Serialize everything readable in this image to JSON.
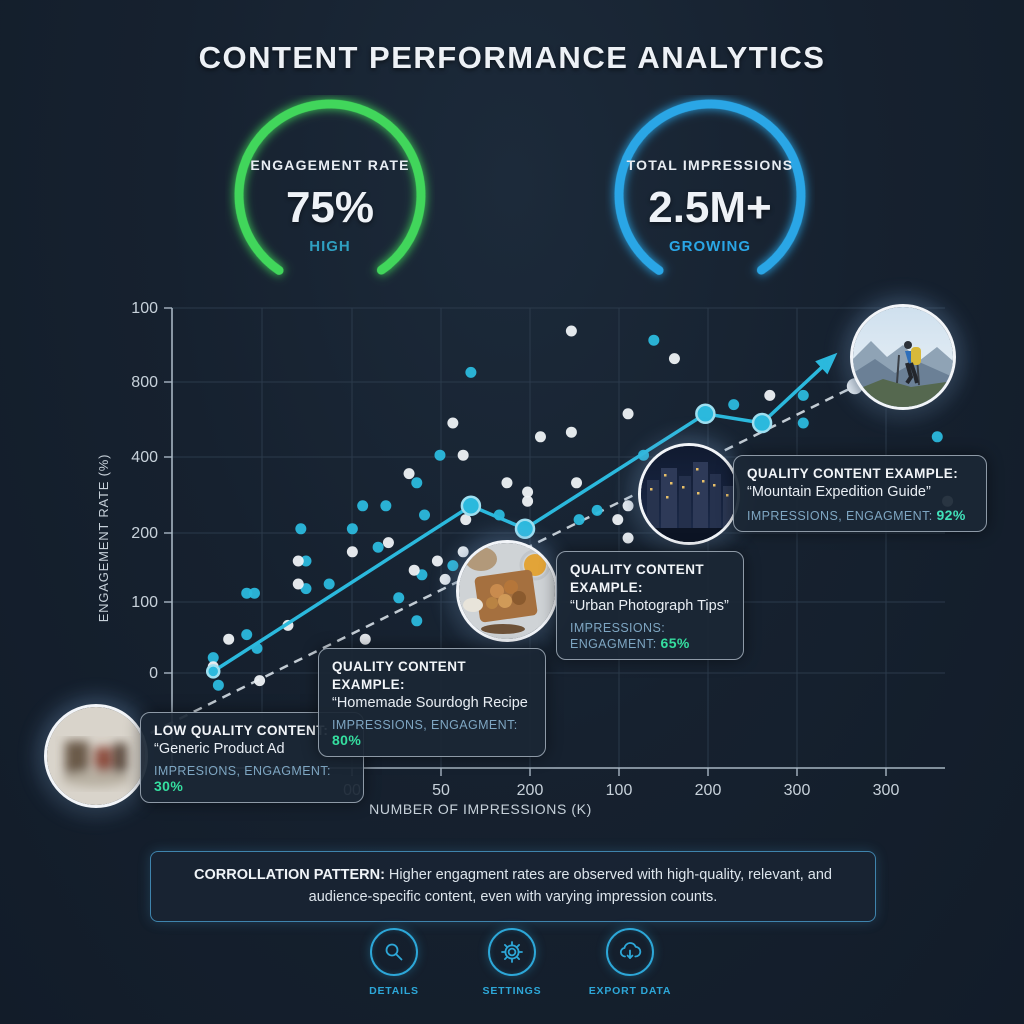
{
  "title": "CONTENT PERFORMANCE ANALYTICS",
  "gauges": [
    {
      "label": "ENGAGEMENT RATE",
      "value": "75%",
      "status": "HIGH",
      "arc_color": "#41d65b",
      "status_color": "#2f9fc0"
    },
    {
      "label": "TOTAL IMPRESSIONS",
      "value": "2.5M+",
      "status": "GROWING",
      "arc_color": "#2aa6e6",
      "status_color": "#2aa6e6"
    }
  ],
  "chart_data": {
    "type": "scatter",
    "title": "",
    "xlabel": "NUMBER OF IMPRESSIONS (K)",
    "ylabel": "ENGAGEMENT RATE (%)",
    "xlim": [
      0,
      300
    ],
    "ylim": [
      0,
      100
    ],
    "grid": true,
    "x_tick_labels": [
      "00",
      "50",
      "200",
      "100",
      "200",
      "300",
      "300"
    ],
    "y_tick_labels": [
      "100",
      "800",
      "400",
      "200",
      "100",
      "0"
    ],
    "series": [
      {
        "name": "cyan-points",
        "color": "#2bb9dd",
        "points": [
          [
            16,
            24
          ],
          [
            18,
            18
          ],
          [
            29,
            29
          ],
          [
            29,
            38
          ],
          [
            32,
            38
          ],
          [
            33,
            26
          ],
          [
            50,
            52
          ],
          [
            52,
            45
          ],
          [
            52,
            39
          ],
          [
            61,
            40
          ],
          [
            70,
            52
          ],
          [
            74,
            57
          ],
          [
            80,
            48
          ],
          [
            83,
            57
          ],
          [
            88,
            37
          ],
          [
            95,
            62
          ],
          [
            95,
            32
          ],
          [
            97,
            42
          ],
          [
            98,
            55
          ],
          [
            104,
            68
          ],
          [
            109,
            44
          ],
          [
            116,
            86
          ],
          [
            127,
            55
          ],
          [
            158,
            54
          ],
          [
            161,
            31
          ],
          [
            165,
            56
          ],
          [
            183,
            68
          ],
          [
            187,
            93
          ],
          [
            218,
            79
          ],
          [
            245,
            81
          ],
          [
            245,
            75
          ],
          [
            297,
            72
          ]
        ]
      },
      {
        "name": "white-points",
        "color": "#eef2f6",
        "points": [
          [
            16,
            22
          ],
          [
            22,
            28
          ],
          [
            34,
            19
          ],
          [
            45,
            31
          ],
          [
            49,
            45
          ],
          [
            49,
            40
          ],
          [
            70,
            47
          ],
          [
            75,
            28
          ],
          [
            84,
            49
          ],
          [
            92,
            64
          ],
          [
            94,
            43
          ],
          [
            103,
            45
          ],
          [
            106,
            41
          ],
          [
            109,
            75
          ],
          [
            113,
            68
          ],
          [
            113,
            47
          ],
          [
            114,
            54
          ],
          [
            130,
            62
          ],
          [
            138,
            60
          ],
          [
            138,
            58
          ],
          [
            143,
            72
          ],
          [
            155,
            95
          ],
          [
            155,
            73
          ],
          [
            157,
            62
          ],
          [
            173,
            54
          ],
          [
            177,
            50
          ],
          [
            177,
            57
          ],
          [
            177,
            77
          ],
          [
            195,
            89
          ],
          [
            232,
            81
          ],
          [
            301,
            58
          ]
        ]
      }
    ],
    "trend_line": {
      "name": "quality-trend",
      "color": "#2bb9dd",
      "points": [
        [
          16,
          21
        ],
        [
          116,
          57
        ],
        [
          137,
          52
        ],
        [
          207,
          77
        ],
        [
          229,
          75
        ],
        [
          252,
          87
        ]
      ],
      "arrow_end": true
    },
    "dashed_trend": {
      "name": "baseline-trend",
      "color": "#c3ccd4",
      "points": [
        [
          -25,
          3
        ],
        [
          265,
          83
        ]
      ],
      "end_dot": true
    },
    "axis_color": "#a7b5c2",
    "grid_color": "#2b3a4b",
    "tick_label_color": "#c7d1da"
  },
  "callouts": [
    {
      "title": "LOW QUALITY CONTENT:",
      "subtitle": "“Generic Product Ad",
      "metrics_label": "IMPRESIONS, ENGAGMENT:",
      "metrics_value": "30%",
      "value_color": "#35dfa0",
      "image": "blurred-product-photo"
    },
    {
      "title": "QUALITY CONTENT EXAMPLE:",
      "subtitle": "“Homemade Sourdogh Recipe",
      "metrics_label": "IMPRESSIONS, ENGAGMENT:",
      "metrics_value": "80%",
      "value_color": "#35dfa0",
      "image": null
    },
    {
      "title": "QUALITY CONTENT EXAMPLE:",
      "subtitle": "“Urban Photograph Tips”",
      "metrics_label": "IMPRESSIONS: ENGAGMENT:",
      "metrics_value": "65%",
      "value_color": "#35dfa0",
      "image": "food-photo"
    },
    {
      "title": "QUALITY CONTENT EXAMPLE:",
      "subtitle": "“Mountain Expedition Guide”",
      "metrics_label": "IMPRESSIONS, ENGAGMENT:",
      "metrics_value": "92%",
      "value_color": "#41e2bb",
      "image": "city-skyline-photo"
    }
  ],
  "hero_image": "mountain-hiker-photo",
  "correlation_note": {
    "label": "CORROLLATION PATTERN:",
    "text": " Higher engagment rates are observed with high-quality, relevant, and audience-specific content, even with varying impression counts."
  },
  "actions": [
    {
      "icon": "search-icon",
      "label": "DETAILS"
    },
    {
      "icon": "gear-icon",
      "label": "SETTINGS"
    },
    {
      "icon": "cloud-download-icon",
      "label": "EXPORT DATA"
    }
  ]
}
